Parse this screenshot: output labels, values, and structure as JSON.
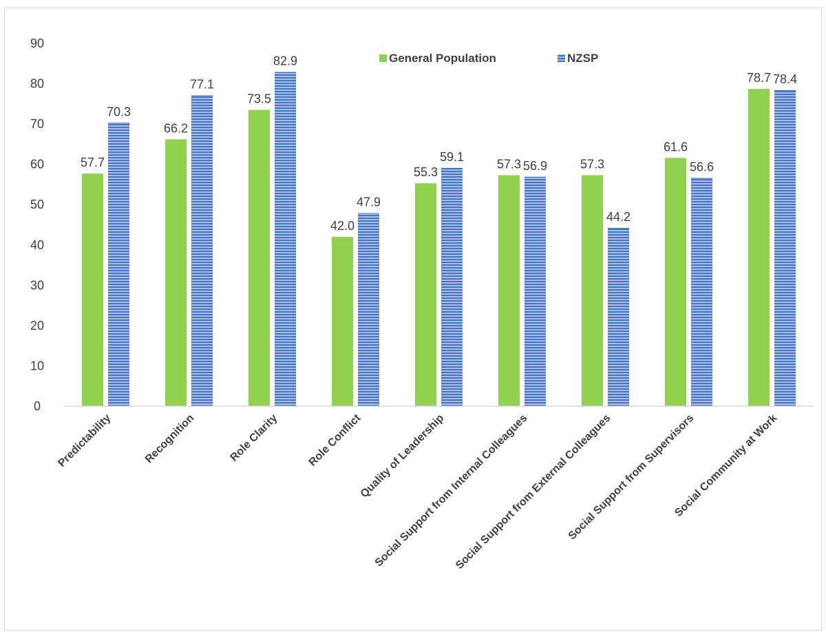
{
  "chart_data": {
    "type": "bar",
    "title": "",
    "xlabel": "",
    "ylabel": "",
    "ylim": [
      0,
      90
    ],
    "yticks": [
      0,
      10,
      20,
      30,
      40,
      50,
      60,
      70,
      80,
      90
    ],
    "grid": false,
    "legend_position": "top",
    "categories": [
      "Predictability",
      "Recognition",
      "Role Clarity",
      "Role Conflict",
      "Quality of Leadership",
      "Social Support from Internal Colleagues",
      "Social Support from External Colleagues",
      "Social Support from Supervisors",
      "Social Community at Work"
    ],
    "series": [
      {
        "name": "General Population",
        "color": "#92d050",
        "pattern": "solid",
        "values": [
          57.7,
          66.2,
          73.5,
          42.0,
          55.3,
          57.3,
          57.3,
          61.6,
          78.7
        ],
        "labels": [
          "57.7",
          "66.2",
          "73.5",
          "42.0",
          "55.3",
          "57.3",
          "57.3",
          "61.6",
          "78.7"
        ]
      },
      {
        "name": "NZSP",
        "color": "#4472c4",
        "pattern": "horizontal-stripes",
        "values": [
          70.3,
          77.1,
          82.9,
          47.9,
          59.1,
          56.9,
          44.2,
          56.6,
          78.4
        ],
        "labels": [
          "70.3",
          "77.1",
          "82.9",
          "47.9",
          "59.1",
          "56.9",
          "44.2",
          "56.6",
          "78.4"
        ]
      }
    ]
  }
}
